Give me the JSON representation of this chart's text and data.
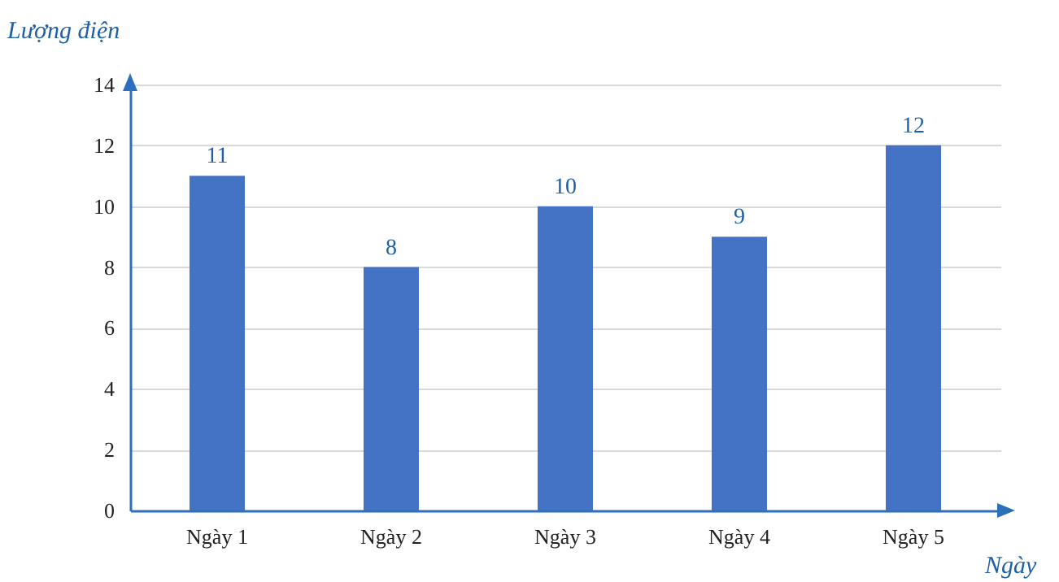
{
  "chart_data": {
    "type": "bar",
    "xlabel": "Ngày",
    "ylabel": "Lượng điện",
    "categories": [
      "Ngày 1",
      "Ngày 2",
      "Ngày 3",
      "Ngày 4",
      "Ngày 5"
    ],
    "values": [
      11,
      8,
      10,
      9,
      12
    ],
    "color": "#4472c4",
    "ylim": [
      0,
      14
    ],
    "yticks": [
      0,
      2,
      4,
      6,
      8,
      10,
      12,
      14
    ],
    "grid": "y",
    "data_labels": true
  }
}
